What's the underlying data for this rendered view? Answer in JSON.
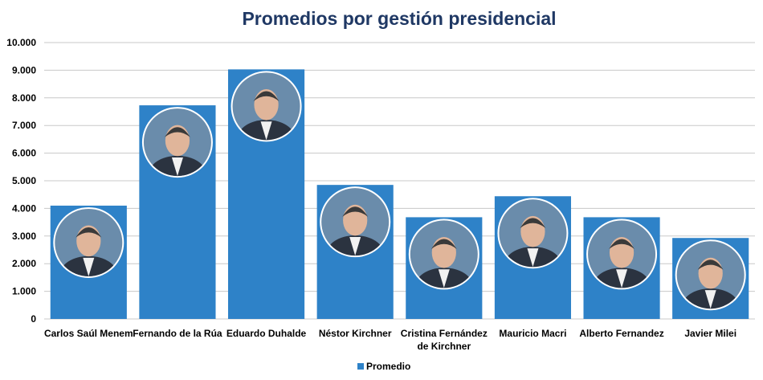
{
  "chart_data": {
    "type": "bar",
    "title": "Promedios por gestión presidencial",
    "xlabel": "",
    "ylabel": "",
    "ylim": [
      0,
      10000
    ],
    "yticks": [
      "0",
      "1.000",
      "2.000",
      "3.000",
      "4.000",
      "5.000",
      "6.000",
      "7.000",
      "8.000",
      "9.000",
      "10.000"
    ],
    "categories": [
      [
        "Carlos Saúl Menem"
      ],
      [
        "Fernando de la Rúa"
      ],
      [
        "Eduardo Duhalde"
      ],
      [
        "Néstor Kirchner"
      ],
      [
        "Cristina Fernández",
        "de Kirchner"
      ],
      [
        "Mauricio Macri"
      ],
      [
        "Alberto Fernandez"
      ],
      [
        "Javier Milei"
      ]
    ],
    "series": [
      {
        "name": "Promedio",
        "values": [
          4100,
          7730,
          9030,
          4850,
          3680,
          4440,
          3680,
          2930
        ]
      }
    ],
    "grid": true,
    "legend": "bottom",
    "colors": {
      "bar": "#2e82c8",
      "title": "#1f3864",
      "grid": "#c8c8c8"
    },
    "photo_markers": [
      "portrait-icon"
    ]
  }
}
